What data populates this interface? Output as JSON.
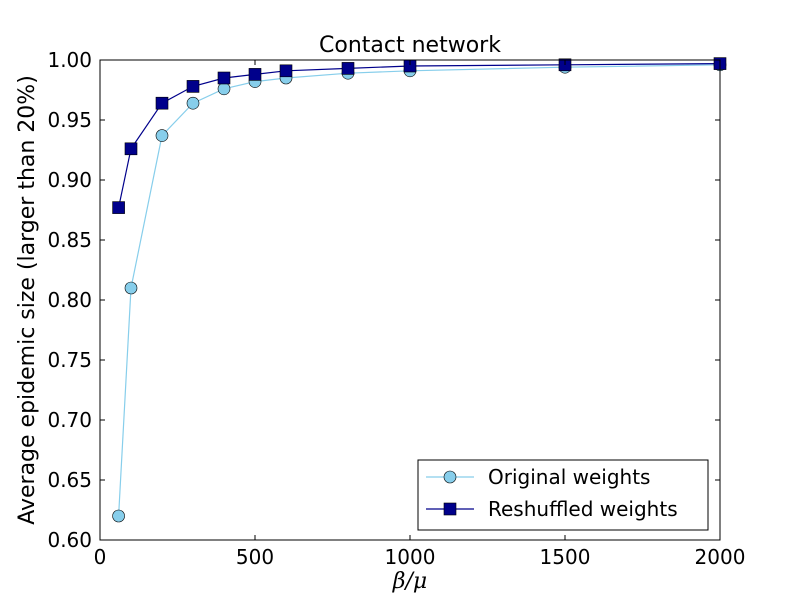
{
  "chart_data": {
    "type": "line",
    "title": "Contact network",
    "xlabel": "β/μ",
    "ylabel": "Average epidemic size (larger than 20%)",
    "xlim": [
      0,
      2000
    ],
    "ylim": [
      0.6,
      1.0
    ],
    "xticks": [
      0,
      500,
      1000,
      1500,
      2000
    ],
    "xtick_labels": [
      "0",
      "500",
      "1000",
      "1500",
      "2000"
    ],
    "yticks": [
      0.6,
      0.65,
      0.7,
      0.75,
      0.8,
      0.85,
      0.9,
      0.95,
      1.0
    ],
    "ytick_labels": [
      "0.60",
      "0.65",
      "0.70",
      "0.75",
      "0.80",
      "0.85",
      "0.90",
      "0.95",
      "1.00"
    ],
    "grid": false,
    "legend_position": "lower-right",
    "series": [
      {
        "name": "Original weights",
        "marker": "circle",
        "line_color": "#87ceeb",
        "marker_color": "#87ceeb",
        "x": [
          60,
          100,
          200,
          300,
          400,
          500,
          600,
          800,
          1000,
          1500,
          2000
        ],
        "y": [
          0.62,
          0.81,
          0.937,
          0.964,
          0.976,
          0.982,
          0.985,
          0.989,
          0.991,
          0.994,
          0.996
        ]
      },
      {
        "name": "Reshuffled weights",
        "marker": "square",
        "line_color": "#00008b",
        "marker_color": "#00008b",
        "x": [
          60,
          100,
          200,
          300,
          400,
          500,
          600,
          800,
          1000,
          1500,
          2000
        ],
        "y": [
          0.877,
          0.926,
          0.964,
          0.978,
          0.985,
          0.988,
          0.991,
          0.993,
          0.995,
          0.996,
          0.997
        ]
      }
    ]
  }
}
